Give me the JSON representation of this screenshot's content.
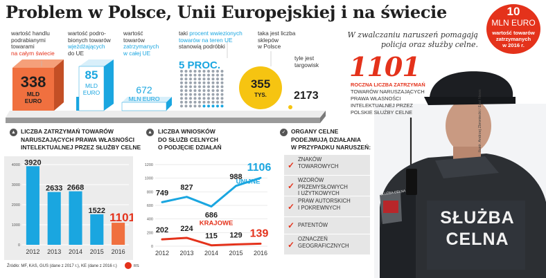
{
  "title": "Problem w Polsce, Unii Europejskiej i na świecie",
  "stats": {
    "world_trade": {
      "label_lines": [
        "wartość handlu",
        "podrabianymi",
        "towarami"
      ],
      "label_red": "na całym świecie",
      "value": "338",
      "unit_lines": [
        "MLD",
        "EURO"
      ]
    },
    "eu_imports": {
      "label_lines": [
        "wartość podro-",
        "bionych towarów"
      ],
      "label_cyan": "wjeżdżających",
      "label_tail": "do UE",
      "value": "85",
      "unit_lines": [
        "MLD",
        "EURO"
      ]
    },
    "eu_seized": {
      "label_lines": [
        "wartość",
        "towarów"
      ],
      "label_cyan_lines": [
        "zatrzymanych",
        "w całej UE"
      ],
      "value": "672",
      "unit": "MLN EURO"
    },
    "eu_fakes_share": {
      "label_pre": "taki",
      "label_cyan_lines": [
        "procent wwiezionych",
        "towarów na teren UE"
      ],
      "label_tail": "stanowią podróbki",
      "value": "5 PROC."
    },
    "shops": {
      "label_lines": [
        "taka jest liczba",
        "sklepów",
        "w Polsce"
      ],
      "value": "355",
      "unit": "TYS."
    },
    "markets": {
      "label_lines": [
        "tyle jest",
        "targowisk"
      ],
      "value": "2173"
    }
  },
  "police_note": "W zwalczaniu naruszeń pomagają policja oraz służby celne.",
  "poland_seized": {
    "value": "10",
    "unit": "MLN EURO",
    "label_lines": [
      "wartość towarów",
      "zatrzymanych",
      "w 2016 r."
    ]
  },
  "detentions_callout": {
    "value": "1101",
    "red_label": "ROCZNA LICZBA ZATRZYMAŃ",
    "label_lines": [
      "TOWARÓW NARUSZAJĄCYCH",
      "PRAWA WŁASNOŚCI",
      "INTELEKTUALNEJ PRZEZ",
      "POLSKIE SŁUŻBY CELNE"
    ]
  },
  "photo_credit": "Ilustr. Andrzej Zbroniecki / East News",
  "officer_patch_lines": [
    "SŁUŻBA",
    "CELNA"
  ],
  "patch_small": "SŁUŻBA CELNA",
  "section1": {
    "title_lines": [
      "LICZBA ZATRZYMAŃ TOWARÓW",
      "NARUSZAJĄCYCH PRAWA WŁASNOŚCI",
      "INTELEKTUALNEJ PRZEZ SŁUŻBY CELNE"
    ]
  },
  "section2": {
    "title_lines": [
      "LICZBA WNIOSKÓW",
      "DO SŁUŻB CELNYCH",
      "O PODJĘCIE DZIAŁAŃ"
    ]
  },
  "section3": {
    "title_lines": [
      "ORGANY CELNE",
      "PODEJMUJĄ DZIAŁANIA",
      "W PRZYPADKU NARUSZEŃ:"
    ],
    "items": [
      {
        "lines": [
          "ZNAKÓW",
          "TOWAROWYCH"
        ]
      },
      {
        "lines": [
          "WZORÓW PRZEMYSŁOWYCH",
          "I UŻYTKOWYCH"
        ]
      },
      {
        "lines": [
          "PRAW AUTORSKICH",
          "I POKREWNYCH"
        ]
      },
      {
        "lines": [
          "PATENTÓW"
        ]
      },
      {
        "lines": [
          "OZNACZEŃ",
          "GEOGRAFICZNYCH"
        ]
      }
    ]
  },
  "source": "Źródło: MF, KAS, GUS (dane z 2017 r.), KE (dane z 2016 r.)",
  "source_mark": "RS",
  "colors": {
    "red": "#e4321b",
    "cyan": "#1aa6e0",
    "bar_blue": "#1aa6e0",
    "orange": "#f0703f",
    "gold": "#f6c411",
    "dark": "#1f1f1f",
    "gray": "#ececec"
  },
  "chart_data": [
    {
      "type": "bar",
      "title": "Liczba zatrzymań towarów naruszających prawa własności intelektualnej przez służby celne",
      "categories": [
        "2012",
        "2013",
        "2014",
        "2015",
        "2016"
      ],
      "values": [
        3920,
        2633,
        2668,
        1522,
        1101
      ],
      "ylim": [
        0,
        4000
      ],
      "yticks": [
        0,
        1000,
        2000,
        3000,
        4000
      ],
      "grid": true
    },
    {
      "type": "line",
      "title": "Liczba wniosków do służb celnych o podjęcie działań",
      "x": [
        "2012",
        "2013",
        "2014",
        "2015",
        "2016"
      ],
      "series": [
        {
          "name": "UNIJNE",
          "values": [
            749,
            827,
            686,
            988,
            1106
          ]
        },
        {
          "name": "KRAJOWE",
          "values": [
            202,
            224,
            115,
            129,
            139
          ]
        }
      ],
      "ylim": [
        0,
        1200
      ],
      "yticks": [
        0,
        200,
        400,
        600,
        800,
        1000,
        1200
      ],
      "grid": true
    }
  ]
}
